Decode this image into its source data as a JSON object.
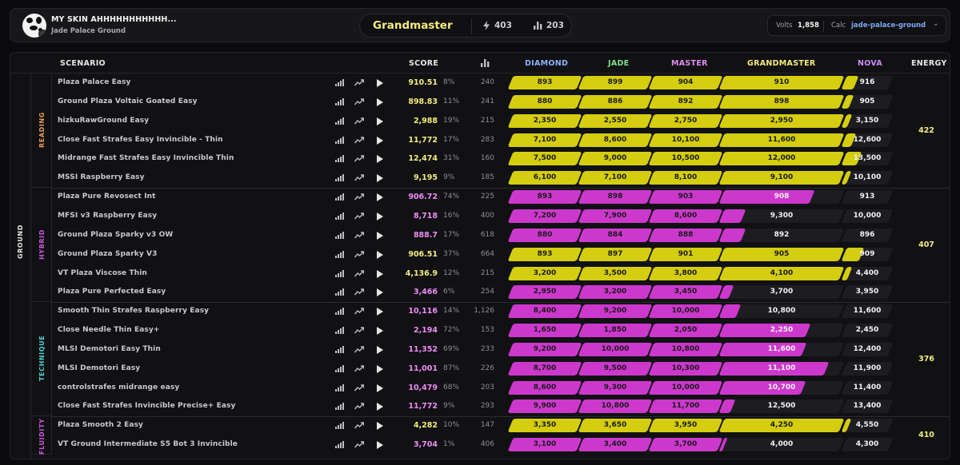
{
  "profile": {
    "name": "MY SKIN AHHHHHHHHHHH...",
    "map": "Jade Palace Ground"
  },
  "rank": {
    "name": "Grandmaster",
    "energy": "403",
    "stat": "203"
  },
  "volts": {
    "label": "Volts",
    "value": "1,858",
    "calc_label": "Calc",
    "calc_value": "jade-palace-ground"
  },
  "columns": {
    "scenario": "SCENARIO",
    "score": "SCORE",
    "diamond": "DIAMOND",
    "jade": "JADE",
    "master": "MASTER",
    "grandmaster": "GRANDMASTER",
    "nova": "NOVA",
    "energy": "ENERGY"
  },
  "category": "GROUND",
  "colors": {
    "yellow": "#d4cd10",
    "magenta": "#cc38cc",
    "dark": "#1d1d21",
    "diamond_text": "#8ab4f8",
    "jade_text": "#7ee08c",
    "master_text": "#e08cf0",
    "grandmaster_text": "#f4ec7e",
    "nova_text": "#c98cf5"
  },
  "groups": [
    {
      "label": "READING",
      "color": "#e49a5a",
      "energy": "422",
      "rows": [
        {
          "name": "Plaza Palace Easy",
          "score": "910.51",
          "pct": "8%",
          "plays": "240",
          "fill": "yellow",
          "filled": 4,
          "partial": 0.25,
          "t": [
            "893",
            "899",
            "904",
            "910",
            "916"
          ]
        },
        {
          "name": "Ground Plaza Voltaic Goated Easy",
          "score": "898.83",
          "pct": "11%",
          "plays": "241",
          "fill": "yellow",
          "filled": 4,
          "partial": 0.15,
          "t": [
            "880",
            "886",
            "892",
            "898",
            "905"
          ]
        },
        {
          "name": "hizkuRawGround Easy",
          "score": "2,988",
          "pct": "19%",
          "plays": "215",
          "fill": "yellow",
          "filled": 4,
          "partial": 0.12,
          "t": [
            "2,350",
            "2,550",
            "2,750",
            "2,950",
            "3,150"
          ]
        },
        {
          "name": "Close Fast Strafes Easy Invincible - Thin",
          "score": "11,772",
          "pct": "17%",
          "plays": "283",
          "fill": "yellow",
          "filled": 4,
          "partial": 0.2,
          "t": [
            "7,100",
            "8,600",
            "10,100",
            "11,600",
            "12,600"
          ]
        },
        {
          "name": "Midrange Fast Strafes Easy Invincible Thin",
          "score": "12,474",
          "pct": "31%",
          "plays": "160",
          "fill": "yellow",
          "filled": 4,
          "partial": 0.32,
          "t": [
            "7,500",
            "9,000",
            "10,500",
            "12,000",
            "13,500"
          ]
        },
        {
          "name": "MSSI Raspberry Easy",
          "score": "9,195",
          "pct": "9%",
          "plays": "185",
          "fill": "yellow",
          "filled": 4,
          "partial": 0.1,
          "t": [
            "6,100",
            "7,100",
            "8,100",
            "9,100",
            "10,100"
          ]
        }
      ]
    },
    {
      "label": "HYBRID",
      "color": "#cc55dd",
      "energy": "407",
      "rows": [
        {
          "name": "Plaza Pure Revosect Int",
          "score": "906.72",
          "pct": "74%",
          "plays": "225",
          "fill": "magenta",
          "filled": 3,
          "partial": 0.75,
          "t": [
            "893",
            "898",
            "903",
            "908",
            "913"
          ]
        },
        {
          "name": "MFSI v3 Raspberry Easy",
          "score": "8,718",
          "pct": "16%",
          "plays": "400",
          "fill": "magenta",
          "filled": 3,
          "partial": 0.18,
          "t": [
            "7,200",
            "7,900",
            "8,600",
            "9,300",
            "10,000"
          ]
        },
        {
          "name": "Ground Plaza Sparky v3 OW",
          "score": "888.7",
          "pct": "17%",
          "plays": "618",
          "fill": "magenta",
          "filled": 3,
          "partial": 0.18,
          "t": [
            "880",
            "884",
            "888",
            "892",
            "896"
          ]
        },
        {
          "name": "Ground Plaza Sparky V3",
          "score": "906.51",
          "pct": "37%",
          "plays": "664",
          "fill": "yellow",
          "filled": 4,
          "partial": 0.38,
          "t": [
            "893",
            "897",
            "901",
            "905",
            "909"
          ]
        },
        {
          "name": "VT Plaza Viscose Thin",
          "score": "4,136.9",
          "pct": "12%",
          "plays": "215",
          "fill": "yellow",
          "filled": 4,
          "partial": 0.12,
          "t": [
            "3,200",
            "3,500",
            "3,800",
            "4,100",
            "4,400"
          ]
        },
        {
          "name": "Plaza Pure Perfected Easy",
          "score": "3,466",
          "pct": "6%",
          "plays": "254",
          "fill": "magenta",
          "filled": 3,
          "partial": 0.08,
          "t": [
            "2,950",
            "3,200",
            "3,450",
            "3,700",
            "3,950"
          ]
        }
      ]
    },
    {
      "label": "TECHNIQUE",
      "color": "#4fd0d0",
      "energy": "376",
      "rows": [
        {
          "name": "Smooth Thin Strafes Raspberry Easy",
          "score": "10,116",
          "pct": "14%",
          "plays": "1,126",
          "fill": "magenta",
          "filled": 3,
          "partial": 0.14,
          "t": [
            "8,400",
            "9,200",
            "10,000",
            "10,800",
            "11,600"
          ]
        },
        {
          "name": "Close Needle Thin Easy+",
          "score": "2,194",
          "pct": "72%",
          "plays": "153",
          "fill": "magenta",
          "filled": 3,
          "partial": 0.72,
          "t": [
            "1,650",
            "1,850",
            "2,050",
            "2,250",
            "2,450"
          ]
        },
        {
          "name": "MLSI Demotori Easy Thin",
          "score": "11,352",
          "pct": "69%",
          "plays": "233",
          "fill": "magenta",
          "filled": 3,
          "partial": 0.69,
          "t": [
            "9,200",
            "10,000",
            "10,800",
            "11,600",
            "12,400"
          ]
        },
        {
          "name": "MLSI Demotori Easy",
          "score": "11,001",
          "pct": "87%",
          "plays": "226",
          "fill": "magenta",
          "filled": 3,
          "partial": 0.87,
          "t": [
            "8,700",
            "9,500",
            "10,300",
            "11,100",
            "11,900"
          ]
        },
        {
          "name": "controlstrafes midrange easy",
          "score": "10,479",
          "pct": "68%",
          "plays": "203",
          "fill": "magenta",
          "filled": 3,
          "partial": 0.68,
          "t": [
            "8,600",
            "9,300",
            "10,000",
            "10,700",
            "11,400"
          ]
        },
        {
          "name": "Close Fast Strafes Invincible Precise+ Easy",
          "score": "11,772",
          "pct": "9%",
          "plays": "293",
          "fill": "magenta",
          "filled": 3,
          "partial": 0.09,
          "t": [
            "9,900",
            "10,800",
            "11,700",
            "12,500",
            "13,400"
          ]
        }
      ]
    },
    {
      "label": "FLUIDITY",
      "color": "#cc55dd",
      "energy": "410",
      "rows": [
        {
          "name": "Plaza Smooth 2 Easy",
          "score": "4,282",
          "pct": "10%",
          "plays": "147",
          "fill": "yellow",
          "filled": 4,
          "partial": 0.1,
          "t": [
            "3,350",
            "3,650",
            "3,950",
            "4,250",
            "4,550"
          ]
        },
        {
          "name": "VT Ground Intermediate S5 Bot 3 Invincible",
          "score": "3,704",
          "pct": "1%",
          "plays": "406",
          "fill": "magenta",
          "filled": 3,
          "partial": 0.02,
          "t": [
            "3,100",
            "3,400",
            "3,700",
            "4,000",
            "4,300"
          ]
        }
      ]
    }
  ]
}
